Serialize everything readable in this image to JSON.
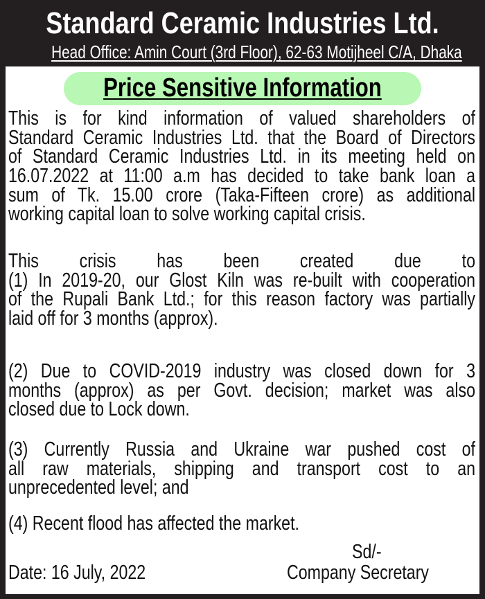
{
  "header": {
    "company": "Standard Ceramic Industries Ltd.",
    "address": "Head Office: Amin Court (3rd Floor), 62-63 Motijheel C/A, Dhaka"
  },
  "notice_title": "Price Sensitive Information",
  "colors": {
    "frame": "#231f20",
    "badge": "#b8f7b4"
  },
  "paragraphs": [
    [
      "This is for kind information of valued shareholders of",
      "Standard Ceramic Industries Ltd. that the Board of Directors",
      "of Standard Ceramic Industries Ltd. in its meeting held on",
      "16.07.2022 at 11:00 a.m has decided to take bank loan a",
      "sum of Tk. 15.00 crore (Taka-Fifteen crore) as additional",
      "working capital loan to solve working capital crisis."
    ],
    [
      "This crisis has been created due to",
      "(1) In 2019-20, our Glost Kiln was re-built with cooperation",
      "of the Rupali Bank Ltd.; for this reason factory was partially",
      "laid off for 3 months (approx)."
    ],
    [
      "(2) Due to COVID-2019 industry was closed down for 3",
      "months (approx) as per Govt. decision; market was also",
      "closed due to Lock down."
    ],
    [
      "(3) Currently Russia and Ukraine war pushed cost of",
      "all raw materials, shipping and transport cost to an",
      "unprecedented level; and"
    ],
    [
      "(4) Recent flood has affected the market."
    ]
  ],
  "footer": {
    "sd": "Sd/-",
    "date": "Date: 16 July, 2022",
    "signatory": "Company Secretary"
  }
}
